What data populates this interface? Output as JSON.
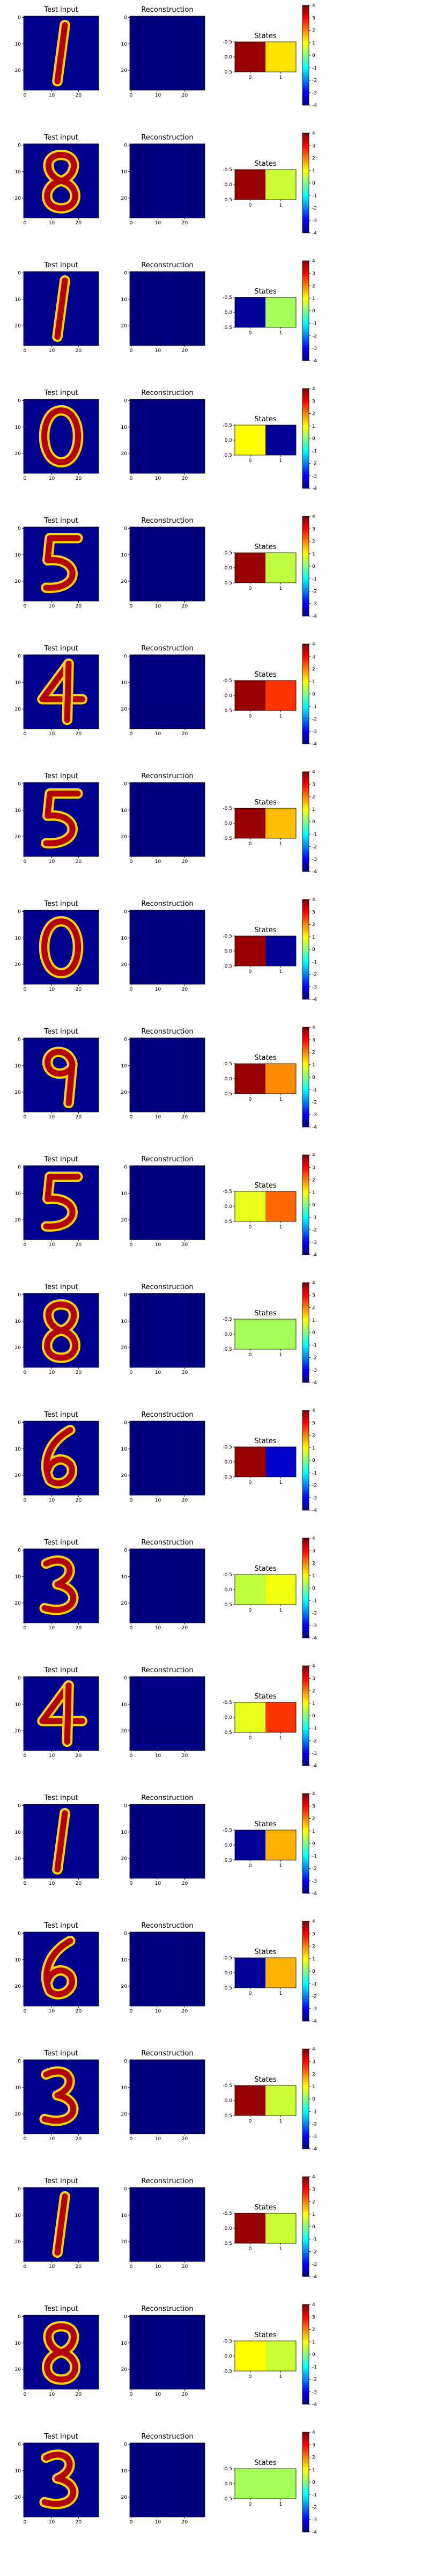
{
  "figure": {
    "panel_titles": [
      "Test input",
      "Reconstruction",
      "States"
    ],
    "image_ticks": [
      "0",
      "10",
      "20"
    ],
    "states_yticks": [
      "-0.5",
      "0.0",
      "0.5"
    ],
    "states_xticks": [
      "0",
      "1"
    ],
    "colorbar_ticks": [
      "4",
      "3",
      "2",
      "1",
      "0",
      "-1",
      "-2",
      "-3",
      "-4"
    ]
  },
  "chart_data": {
    "type": "heatmap",
    "colormap": "jet",
    "colorbar_range": [
      -4,
      4
    ],
    "rows": [
      {
        "digit": "1",
        "states": [
          3.8,
          1.2
        ]
      },
      {
        "digit": "8",
        "states": [
          3.8,
          0.6
        ]
      },
      {
        "digit": "1",
        "states": [
          -3.8,
          0.3
        ]
      },
      {
        "digit": "0",
        "states": [
          1.0,
          -3.8
        ]
      },
      {
        "digit": "5",
        "states": [
          3.8,
          0.5
        ]
      },
      {
        "digit": "4",
        "states": [
          3.8,
          2.6
        ]
      },
      {
        "digit": "5",
        "states": [
          3.8,
          1.5
        ]
      },
      {
        "digit": "0",
        "states": [
          3.8,
          -3.8
        ]
      },
      {
        "digit": "9",
        "states": [
          3.8,
          1.9
        ]
      },
      {
        "digit": "5",
        "states": [
          0.8,
          2.2
        ]
      },
      {
        "digit": "8",
        "states": [
          0.3,
          0.3
        ]
      },
      {
        "digit": "6",
        "states": [
          3.8,
          -3.4
        ]
      },
      {
        "digit": "3",
        "states": [
          0.5,
          0.9
        ]
      },
      {
        "digit": "4",
        "states": [
          0.8,
          2.6
        ]
      },
      {
        "digit": "1",
        "states": [
          -3.8,
          1.6
        ]
      },
      {
        "digit": "6",
        "states": [
          -3.8,
          1.6
        ]
      },
      {
        "digit": "3",
        "states": [
          3.8,
          0.6
        ]
      },
      {
        "digit": "1",
        "states": [
          3.8,
          0.6
        ]
      },
      {
        "digit": "8",
        "states": [
          1.0,
          0.6
        ]
      },
      {
        "digit": "3",
        "states": [
          0.3,
          0.3
        ]
      }
    ]
  }
}
